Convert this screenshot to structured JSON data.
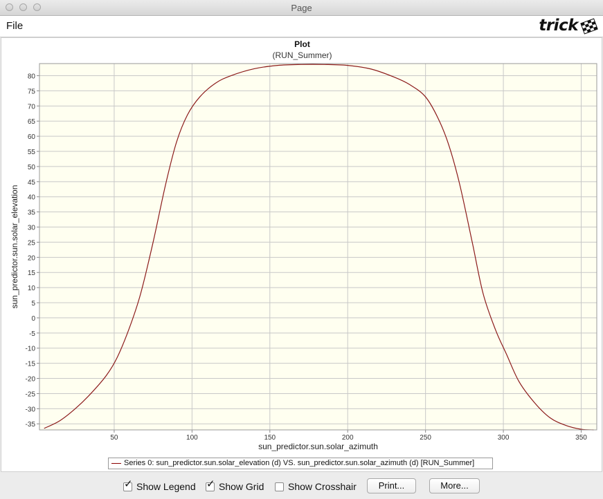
{
  "window": {
    "title": "Page"
  },
  "menu": {
    "file": "File"
  },
  "logo": {
    "text": "trick"
  },
  "plot": {
    "title": "Plot",
    "subtitle": "(RUN_Summer)",
    "legend": "Series 0: sun_predictor.sun.solar_elevation (d) VS. sun_predictor.sun.solar_azimuth (d) [RUN_Summer]"
  },
  "controls": {
    "show_legend": {
      "label": "Show Legend",
      "checked": true
    },
    "show_grid": {
      "label": "Show Grid",
      "checked": true
    },
    "show_crosshair": {
      "label": "Show Crosshair",
      "checked": false
    },
    "print_label": "Print...",
    "more_label": "More..."
  },
  "colors": {
    "plot_background": "#fffff0",
    "series": "#8b1a1a",
    "grid": "#c8c8c8"
  },
  "chart_data": {
    "type": "line",
    "title": "Plot",
    "subtitle": "(RUN_Summer)",
    "xlabel": "sun_predictor.sun.solar_azimuth",
    "ylabel": "sun_predictor.sun.solar_elevation",
    "xlim": [
      2,
      360
    ],
    "ylim": [
      -37,
      84
    ],
    "xticks": [
      50,
      100,
      150,
      200,
      250,
      300,
      350
    ],
    "yticks": [
      -35,
      -30,
      -25,
      -20,
      -15,
      -10,
      -5,
      0,
      5,
      10,
      15,
      20,
      25,
      30,
      35,
      40,
      45,
      50,
      55,
      60,
      65,
      70,
      75,
      80
    ],
    "grid": true,
    "legend_position": "bottom",
    "series": [
      {
        "name": "Series 0: sun_predictor.sun.solar_elevation (d) VS. sun_predictor.sun.solar_azimuth (d) [RUN_Summer]",
        "x": [
          5,
          15,
          25,
          35,
          45,
          52,
          60,
          67,
          75,
          83,
          90,
          97,
          105,
          115,
          125,
          140,
          155,
          170,
          185,
          200,
          215,
          230,
          240,
          250,
          258,
          265,
          272,
          280,
          287,
          295,
          302,
          310,
          320,
          330,
          340,
          350,
          358
        ],
        "y": [
          -36.5,
          -34,
          -30,
          -25,
          -19,
          -13,
          -3,
          8,
          25,
          44,
          58,
          67,
          73,
          77.5,
          80,
          82.3,
          83.4,
          83.7,
          83.7,
          83.4,
          82.2,
          79.5,
          77,
          73,
          66,
          57,
          44,
          25,
          8,
          -4,
          -12,
          -21,
          -28,
          -33,
          -35.5,
          -36.8,
          -37
        ]
      }
    ]
  }
}
